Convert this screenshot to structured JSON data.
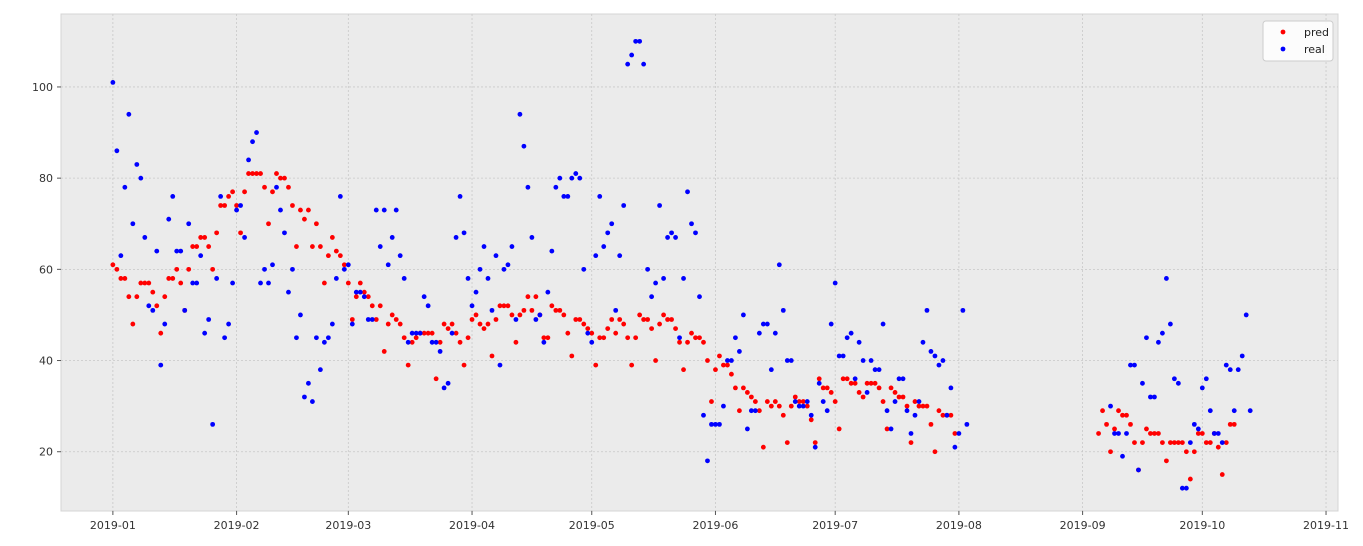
{
  "chart_data": {
    "type": "scatter",
    "title": "",
    "xlabel": "",
    "ylabel": "",
    "grid": true,
    "legend_position": "top-right",
    "xlim": [
      "2018-12-19",
      "2019-11-04"
    ],
    "ylim": [
      7,
      116
    ],
    "x_ticks": [
      "2019-01",
      "2019-02",
      "2019-03",
      "2019-04",
      "2019-05",
      "2019-06",
      "2019-07",
      "2019-08",
      "2019-09",
      "2019-10",
      "2019-11"
    ],
    "y_ticks": [
      20,
      40,
      60,
      80,
      100
    ],
    "start_date": "2019-01-01",
    "series": [
      {
        "name": "pred",
        "color": "#ff0000",
        "values": [
          61,
          60,
          58,
          58,
          54,
          48,
          54,
          57,
          57,
          57,
          55,
          52,
          46,
          54,
          58,
          58,
          60,
          57,
          51,
          60,
          65,
          65,
          67,
          67,
          65,
          60,
          68,
          74,
          74,
          76,
          77,
          74,
          68,
          77,
          81,
          81,
          81,
          81,
          78,
          70,
          77,
          81,
          80,
          80,
          78,
          74,
          65,
          73,
          71,
          73,
          65,
          70,
          65,
          57,
          63,
          67,
          64,
          63,
          61,
          57,
          49,
          54,
          57,
          55,
          54,
          52,
          49,
          52,
          42,
          48,
          50,
          49,
          48,
          45,
          39,
          44,
          45,
          46,
          46,
          46,
          46,
          36,
          44,
          48,
          47,
          48,
          46,
          44,
          39,
          45,
          49,
          50,
          48,
          47,
          48,
          41,
          49,
          52,
          52,
          52,
          50,
          44,
          50,
          51,
          54,
          51,
          54,
          50,
          45,
          45,
          52,
          51,
          51,
          50,
          46,
          41,
          49,
          49,
          48,
          47,
          46,
          39,
          45,
          45,
          47,
          49,
          46,
          49,
          48,
          45,
          39,
          45,
          50,
          49,
          49,
          47,
          40,
          48,
          50,
          49,
          49,
          47,
          44,
          38,
          44,
          46,
          45,
          45,
          44,
          40,
          31,
          38,
          41,
          39,
          39,
          37,
          34,
          29,
          34,
          33,
          32,
          31,
          29,
          21,
          31,
          30,
          31,
          30,
          28,
          22,
          30,
          32,
          31,
          31,
          30,
          27,
          22,
          36,
          34,
          34,
          33,
          31,
          25,
          36,
          36,
          35,
          35,
          33,
          32,
          35,
          35,
          35,
          34,
          31,
          25,
          34,
          33,
          32,
          32,
          30,
          22,
          31,
          30,
          30,
          30,
          26,
          20,
          29,
          28,
          28,
          28,
          24,
          null,
          null,
          null,
          null,
          null,
          null,
          null,
          null,
          null,
          null,
          null,
          null,
          null,
          null,
          null,
          null,
          null,
          null,
          null,
          null,
          null,
          null,
          null,
          null,
          null,
          null,
          null,
          null,
          null,
          null,
          null,
          null,
          null,
          null,
          null,
          24,
          29,
          26,
          20,
          25,
          29,
          28,
          28,
          26,
          22,
          16,
          22,
          25,
          24,
          24,
          24,
          22,
          18,
          22,
          22,
          22,
          22,
          20,
          14,
          20,
          24,
          24,
          22,
          22,
          24,
          21,
          15,
          22,
          26,
          26
        ]
      },
      {
        "name": "real",
        "color": "#0000ff",
        "values": [
          101,
          86,
          63,
          78,
          94,
          70,
          83,
          80,
          67,
          52,
          51,
          64,
          39,
          48,
          71,
          76,
          64,
          64,
          51,
          70,
          57,
          57,
          63,
          46,
          49,
          26,
          58,
          76,
          45,
          48,
          57,
          73,
          74,
          67,
          84,
          88,
          90,
          57,
          60,
          57,
          61,
          78,
          73,
          68,
          55,
          60,
          45,
          50,
          32,
          35,
          31,
          45,
          38,
          44,
          45,
          48,
          58,
          76,
          60,
          61,
          48,
          55,
          55,
          54,
          49,
          49,
          73,
          65,
          73,
          61,
          67,
          73,
          63,
          58,
          44,
          46,
          46,
          46,
          54,
          52,
          44,
          44,
          42,
          34,
          35,
          46,
          67,
          76,
          68,
          58,
          52,
          55,
          60,
          65,
          58,
          51,
          63,
          39,
          60,
          61,
          65,
          49,
          94,
          87,
          78,
          67,
          49,
          50,
          44,
          55,
          64,
          78,
          80,
          76,
          76,
          80,
          81,
          80,
          60,
          46,
          44,
          63,
          76,
          65,
          68,
          70,
          51,
          63,
          74,
          105,
          107,
          110,
          110,
          105,
          60,
          54,
          57,
          74,
          58,
          67,
          68,
          67,
          45,
          58,
          77,
          70,
          68,
          54,
          28,
          18,
          26,
          26,
          26,
          30,
          40,
          40,
          45,
          42,
          50,
          25,
          29,
          29,
          46,
          48,
          48,
          38,
          46,
          61,
          51,
          40,
          40,
          31,
          30,
          30,
          31,
          28,
          21,
          35,
          31,
          29,
          48,
          57,
          41,
          41,
          45,
          46,
          36,
          44,
          40,
          33,
          40,
          38,
          38,
          48,
          29,
          25,
          31,
          36,
          36,
          29,
          24,
          28,
          31,
          44,
          51,
          42,
          41,
          39,
          40,
          28,
          34,
          21,
          24,
          51,
          26,
          null,
          null,
          null,
          null,
          null,
          null,
          null,
          null,
          null,
          null,
          null,
          null,
          null,
          null,
          null,
          null,
          null,
          null,
          null,
          null,
          null,
          null,
          null,
          null,
          null,
          null,
          null,
          null,
          null,
          null,
          null,
          null,
          null,
          null,
          null,
          30,
          24,
          24,
          19,
          24,
          39,
          39,
          16,
          35,
          45,
          32,
          32,
          44,
          46,
          58,
          48,
          36,
          35,
          12,
          12,
          22,
          26,
          25,
          34,
          36,
          29,
          24,
          24,
          22,
          39,
          38,
          29,
          38,
          41,
          50,
          29
        ]
      }
    ]
  }
}
